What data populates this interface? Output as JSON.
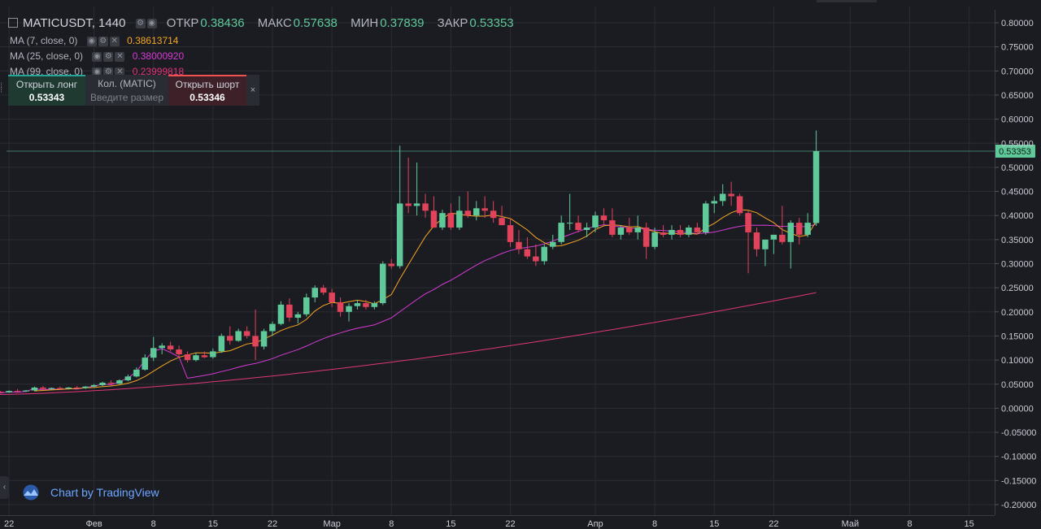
{
  "header": {
    "symbol_label": "MATICUSDT, 1440",
    "open_label": "ОТКР",
    "open_value": "0.38436",
    "high_label": "МАКС",
    "high_value": "0.57638",
    "low_label": "МИН",
    "low_value": "0.37839",
    "close_label": "ЗАКР",
    "close_value": "0.53353"
  },
  "indicators": [
    {
      "label": "MA (7, close, 0)",
      "value": "0.38613714",
      "color": "#f5a623"
    },
    {
      "label": "MA (25, close, 0)",
      "value": "0.38000920",
      "color": "#d63bd6"
    },
    {
      "label": "MA (99, close, 0)",
      "value": "0.23999818",
      "color": "#e0357a"
    }
  ],
  "trade_panel": {
    "long_label": "Открыть лонг",
    "long_price": "0.53343",
    "qty_label": "Кол. (MATIC)",
    "qty_placeholder": "Введите размер",
    "short_label": "Открыть шорт",
    "short_price": "0.53346",
    "close_symbol": "×"
  },
  "branding": {
    "text": "Chart by TradingView",
    "collapse_symbol": "‹"
  },
  "last_price": {
    "label": "0.53353",
    "value": 0.53353
  },
  "colors": {
    "up": "#5fc99a",
    "down": "#e0435a",
    "background": "#1b1c22",
    "grid": "#2a2c33"
  },
  "chart_data": {
    "type": "candlestick",
    "ylim": [
      -0.2,
      0.8
    ],
    "y_ticks": [
      0.8,
      0.75,
      0.7,
      0.65,
      0.6,
      0.55,
      0.5,
      0.45,
      0.4,
      0.35,
      0.3,
      0.25,
      0.2,
      0.15,
      0.1,
      0.05,
      0.0,
      -0.05,
      -0.1,
      -0.15,
      -0.2
    ],
    "y_tick_labels": [
      "0.80000",
      "0.75000",
      "0.70000",
      "0.65000",
      "0.60000",
      "0.55000",
      "0.50000",
      "0.45000",
      "0.40000",
      "0.35000",
      "0.30000",
      "0.25000",
      "0.20000",
      "0.15000",
      "0.10000",
      "0.05000",
      "0.00000",
      "-0.05000",
      "-0.10000",
      "-0.15000",
      "-0.20000"
    ],
    "x_ticks": [
      {
        "label": "22",
        "day": -10
      },
      {
        "label": "Фев",
        "day": 0
      },
      {
        "label": "8",
        "day": 7
      },
      {
        "label": "15",
        "day": 14
      },
      {
        "label": "22",
        "day": 21
      },
      {
        "label": "Мар",
        "day": 28
      },
      {
        "label": "8",
        "day": 35
      },
      {
        "label": "15",
        "day": 42
      },
      {
        "label": "22",
        "day": 49
      },
      {
        "label": "Апр",
        "day": 59
      },
      {
        "label": "8",
        "day": 66
      },
      {
        "label": "15",
        "day": 73
      },
      {
        "label": "22",
        "day": 80
      },
      {
        "label": "Май",
        "day": 89
      },
      {
        "label": "8",
        "day": 96
      },
      {
        "label": "15",
        "day": 103
      }
    ],
    "x_range": [
      -10.3,
      106
    ],
    "candles": [
      [
        0.031,
        0.034,
        0.03,
        0.033
      ],
      [
        0.033,
        0.036,
        0.031,
        0.034
      ],
      [
        0.034,
        0.036,
        0.032,
        0.033
      ],
      [
        0.033,
        0.037,
        0.032,
        0.036
      ],
      [
        0.036,
        0.04,
        0.034,
        0.035
      ],
      [
        0.035,
        0.038,
        0.034,
        0.037
      ],
      [
        0.037,
        0.045,
        0.035,
        0.043
      ],
      [
        0.043,
        0.046,
        0.038,
        0.04
      ],
      [
        0.04,
        0.043,
        0.038,
        0.042
      ],
      [
        0.042,
        0.045,
        0.039,
        0.041
      ],
      [
        0.041,
        0.044,
        0.039,
        0.043
      ],
      [
        0.043,
        0.046,
        0.041,
        0.042
      ],
      [
        0.042,
        0.046,
        0.04,
        0.045
      ],
      [
        0.045,
        0.05,
        0.043,
        0.048
      ],
      [
        0.048,
        0.055,
        0.046,
        0.053
      ],
      [
        0.053,
        0.058,
        0.049,
        0.051
      ],
      [
        0.051,
        0.06,
        0.05,
        0.058
      ],
      [
        0.058,
        0.07,
        0.056,
        0.066
      ],
      [
        0.066,
        0.085,
        0.064,
        0.08
      ],
      [
        0.08,
        0.112,
        0.078,
        0.105
      ],
      [
        0.105,
        0.148,
        0.098,
        0.125
      ],
      [
        0.125,
        0.135,
        0.112,
        0.13
      ],
      [
        0.13,
        0.138,
        0.118,
        0.122
      ],
      [
        0.122,
        0.13,
        0.105,
        0.112
      ],
      [
        0.112,
        0.118,
        0.095,
        0.1
      ],
      [
        0.1,
        0.115,
        0.097,
        0.11
      ],
      [
        0.11,
        0.118,
        0.104,
        0.106
      ],
      [
        0.106,
        0.124,
        0.103,
        0.118
      ],
      [
        0.118,
        0.155,
        0.115,
        0.15
      ],
      [
        0.15,
        0.17,
        0.132,
        0.14
      ],
      [
        0.14,
        0.165,
        0.138,
        0.16
      ],
      [
        0.16,
        0.17,
        0.145,
        0.15
      ],
      [
        0.15,
        0.205,
        0.1,
        0.128
      ],
      [
        0.128,
        0.165,
        0.122,
        0.16
      ],
      [
        0.16,
        0.18,
        0.15,
        0.175
      ],
      [
        0.175,
        0.222,
        0.172,
        0.215
      ],
      [
        0.215,
        0.228,
        0.18,
        0.188
      ],
      [
        0.188,
        0.2,
        0.176,
        0.195
      ],
      [
        0.195,
        0.238,
        0.19,
        0.23
      ],
      [
        0.23,
        0.255,
        0.22,
        0.25
      ],
      [
        0.25,
        0.256,
        0.235,
        0.24
      ],
      [
        0.24,
        0.248,
        0.21,
        0.22
      ],
      [
        0.22,
        0.23,
        0.19,
        0.2
      ],
      [
        0.2,
        0.218,
        0.18,
        0.212
      ],
      [
        0.212,
        0.225,
        0.205,
        0.218
      ],
      [
        0.218,
        0.225,
        0.205,
        0.21
      ],
      [
        0.21,
        0.222,
        0.205,
        0.218
      ],
      [
        0.218,
        0.305,
        0.214,
        0.3
      ],
      [
        0.3,
        0.31,
        0.29,
        0.295
      ],
      [
        0.295,
        0.545,
        0.29,
        0.425
      ],
      [
        0.425,
        0.52,
        0.405,
        0.42
      ],
      [
        0.42,
        0.51,
        0.4,
        0.425
      ],
      [
        0.425,
        0.445,
        0.395,
        0.41
      ],
      [
        0.41,
        0.44,
        0.38,
        0.375
      ],
      [
        0.375,
        0.412,
        0.37,
        0.405
      ],
      [
        0.405,
        0.425,
        0.37,
        0.375
      ],
      [
        0.375,
        0.44,
        0.37,
        0.41
      ],
      [
        0.41,
        0.45,
        0.395,
        0.4
      ],
      [
        0.4,
        0.43,
        0.39,
        0.415
      ],
      [
        0.415,
        0.44,
        0.395,
        0.41
      ],
      [
        0.41,
        0.43,
        0.385,
        0.395
      ],
      [
        0.395,
        0.42,
        0.38,
        0.38
      ],
      [
        0.38,
        0.395,
        0.335,
        0.345
      ],
      [
        0.345,
        0.37,
        0.32,
        0.33
      ],
      [
        0.33,
        0.355,
        0.31,
        0.315
      ],
      [
        0.315,
        0.34,
        0.295,
        0.305
      ],
      [
        0.305,
        0.34,
        0.298,
        0.335
      ],
      [
        0.335,
        0.36,
        0.33,
        0.345
      ],
      [
        0.345,
        0.4,
        0.34,
        0.385
      ],
      [
        0.385,
        0.445,
        0.37,
        0.385
      ],
      [
        0.385,
        0.4,
        0.365,
        0.37
      ],
      [
        0.37,
        0.385,
        0.355,
        0.375
      ],
      [
        0.375,
        0.408,
        0.365,
        0.4
      ],
      [
        0.4,
        0.415,
        0.38,
        0.39
      ],
      [
        0.39,
        0.415,
        0.355,
        0.36
      ],
      [
        0.36,
        0.38,
        0.35,
        0.375
      ],
      [
        0.375,
        0.395,
        0.36,
        0.365
      ],
      [
        0.365,
        0.4,
        0.35,
        0.375
      ],
      [
        0.375,
        0.385,
        0.31,
        0.335
      ],
      [
        0.335,
        0.375,
        0.33,
        0.365
      ],
      [
        0.365,
        0.38,
        0.355,
        0.36
      ],
      [
        0.36,
        0.38,
        0.35,
        0.37
      ],
      [
        0.37,
        0.38,
        0.355,
        0.36
      ],
      [
        0.36,
        0.38,
        0.355,
        0.375
      ],
      [
        0.375,
        0.385,
        0.36,
        0.365
      ],
      [
        0.365,
        0.43,
        0.36,
        0.425
      ],
      [
        0.425,
        0.44,
        0.405,
        0.43
      ],
      [
        0.43,
        0.465,
        0.42,
        0.445
      ],
      [
        0.445,
        0.47,
        0.42,
        0.44
      ],
      [
        0.44,
        0.445,
        0.4,
        0.405
      ],
      [
        0.405,
        0.41,
        0.28,
        0.365
      ],
      [
        0.365,
        0.375,
        0.315,
        0.33
      ],
      [
        0.33,
        0.35,
        0.295,
        0.35
      ],
      [
        0.35,
        0.36,
        0.32,
        0.36
      ],
      [
        0.36,
        0.42,
        0.34,
        0.345
      ],
      [
        0.345,
        0.39,
        0.29,
        0.385
      ],
      [
        0.385,
        0.395,
        0.34,
        0.36
      ],
      [
        0.36,
        0.405,
        0.355,
        0.385
      ],
      [
        0.38436,
        0.57638,
        0.37839,
        0.53353
      ]
    ],
    "ma7": [],
    "ma25": [],
    "ma99": []
  }
}
